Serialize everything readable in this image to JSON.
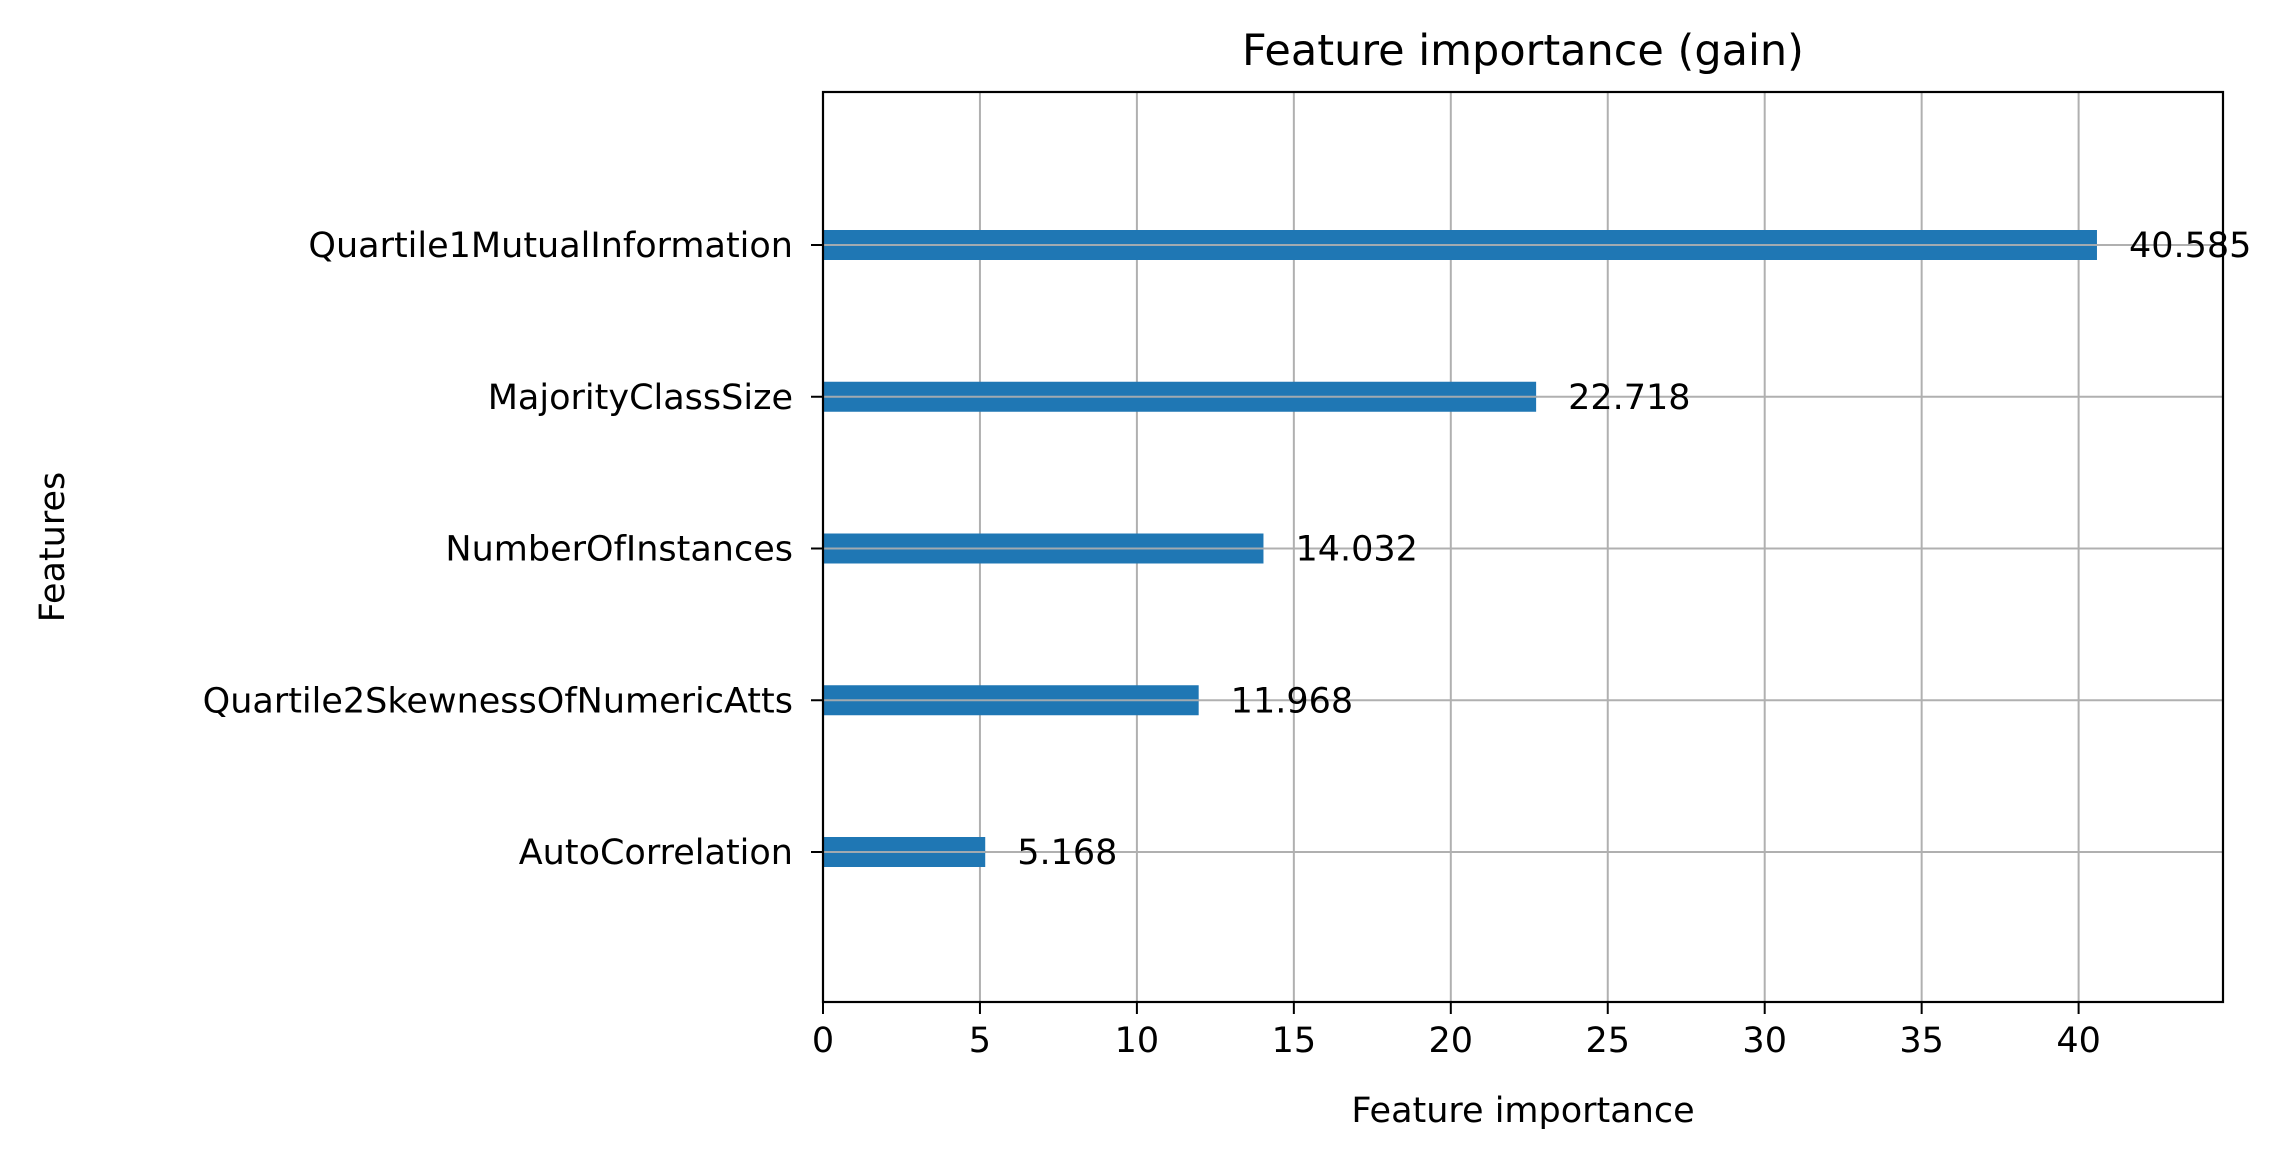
{
  "chart_data": {
    "type": "bar",
    "orientation": "horizontal",
    "title": "Feature importance (gain)",
    "xlabel": "Feature importance",
    "ylabel": "Features",
    "categories": [
      "Quartile1MutualInformation",
      "MajorityClassSize",
      "NumberOfInstances",
      "Quartile2SkewnessOfNumericAtts",
      "AutoCorrelation"
    ],
    "values": [
      40.585,
      22.718,
      14.032,
      11.968,
      5.168
    ],
    "value_labels": [
      "40.585",
      "22.718",
      "14.032",
      "11.968",
      "5.168"
    ],
    "xticks": [
      0,
      5,
      10,
      15,
      20,
      25,
      30,
      35,
      40
    ],
    "xlim": [
      0,
      44.6
    ],
    "grid": true,
    "bar_color": "#1f77b4",
    "grid_color": "#b0b0b0"
  }
}
